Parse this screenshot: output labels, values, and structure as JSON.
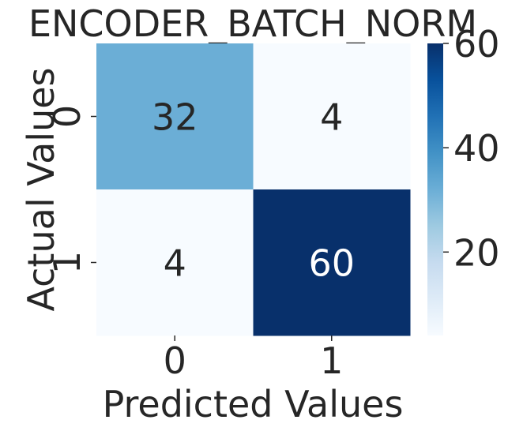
{
  "chart_data": {
    "type": "heatmap",
    "title": "ENCODER_BATCH_NORM",
    "xlabel": "Predicted Values",
    "ylabel": "Actual Values",
    "x_categories": [
      "0",
      "1"
    ],
    "y_categories": [
      "0",
      "1"
    ],
    "values": [
      [
        32,
        4
      ],
      [
        4,
        60
      ]
    ],
    "colormap": "Blues",
    "color_range": [
      4,
      60
    ],
    "colorbar": {
      "ticks": [
        "20",
        "40",
        "60"
      ],
      "tick_values": [
        20,
        40,
        60
      ]
    },
    "grid": false,
    "legend": "right (colorbar)"
  }
}
